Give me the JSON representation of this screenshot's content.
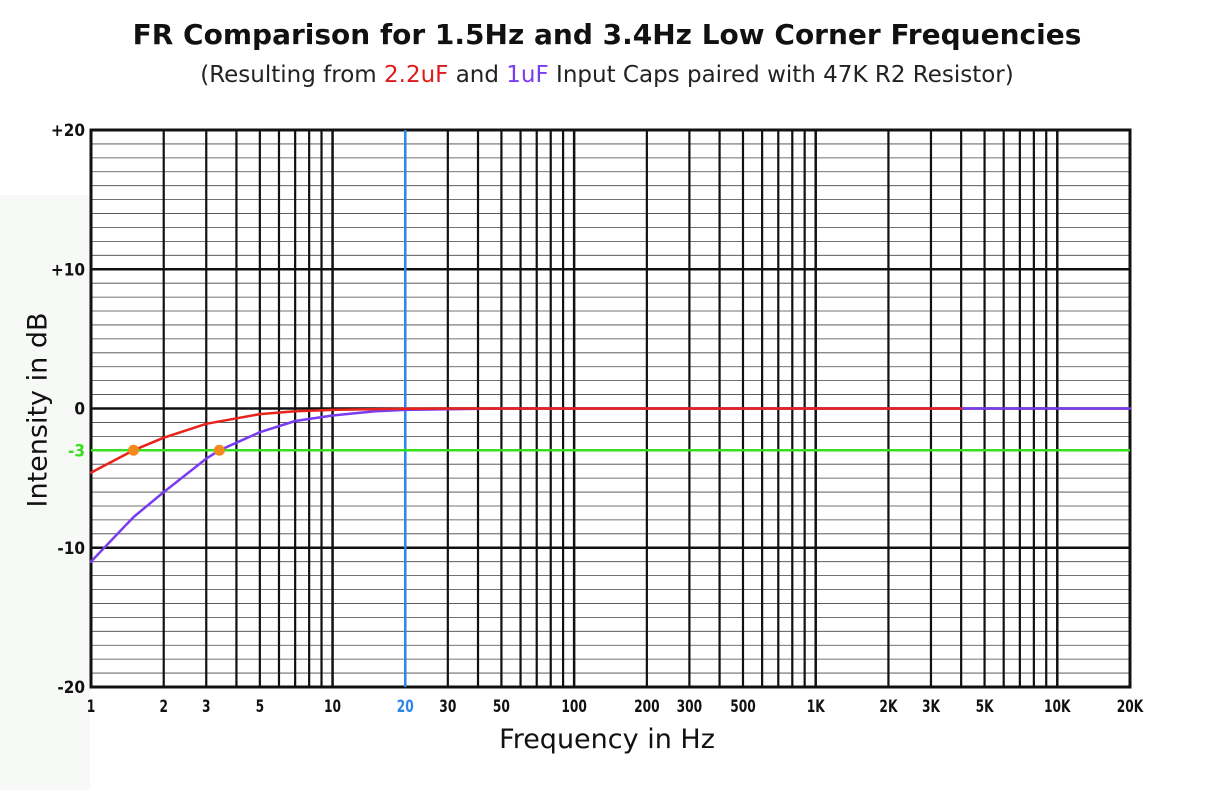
{
  "title": "FR Comparison for 1.5Hz and 3.4Hz Low Corner Frequencies",
  "subtitle": {
    "prefix": "(Resulting from ",
    "red_part": "2.2uF",
    "middle": " and ",
    "purple_part": "1uF",
    "suffix": " Input Caps paired with 47K R2 Resistor)"
  },
  "colors": {
    "red_series": "#e8231a",
    "purple_series": "#7a3cf0",
    "minus3_line": "#33e01a",
    "twenty_hz_line": "#2a86e8",
    "marker": "#f28a1c",
    "grid": "#111111"
  },
  "chart_data": {
    "type": "line",
    "title": "FR Comparison for 1.5Hz and 3.4Hz Low Corner Frequencies",
    "xlabel": "Frequency in Hz",
    "ylabel": "Intensity in dB",
    "xscale": "log",
    "xlim": [
      1,
      20000
    ],
    "ylim": [
      -20,
      20
    ],
    "x_ticks": [
      {
        "value": 1,
        "label": "1"
      },
      {
        "value": 2,
        "label": "2"
      },
      {
        "value": 3,
        "label": "3"
      },
      {
        "value": 5,
        "label": "5"
      },
      {
        "value": 10,
        "label": "10"
      },
      {
        "value": 20,
        "label": "20",
        "highlight": true
      },
      {
        "value": 30,
        "label": "30"
      },
      {
        "value": 50,
        "label": "50"
      },
      {
        "value": 100,
        "label": "100"
      },
      {
        "value": 200,
        "label": "200"
      },
      {
        "value": 300,
        "label": "300"
      },
      {
        "value": 500,
        "label": "500"
      },
      {
        "value": 1000,
        "label": "1K"
      },
      {
        "value": 2000,
        "label": "2K"
      },
      {
        "value": 3000,
        "label": "3K"
      },
      {
        "value": 5000,
        "label": "5K"
      },
      {
        "value": 10000,
        "label": "10K"
      },
      {
        "value": 20000,
        "label": "20K"
      }
    ],
    "y_ticks": [
      {
        "value": 20,
        "label": "+20"
      },
      {
        "value": 10,
        "label": "+10"
      },
      {
        "value": 0,
        "label": "0"
      },
      {
        "value": -3,
        "label": "-3",
        "highlight": true
      },
      {
        "value": -10,
        "label": "-10"
      },
      {
        "value": -20,
        "label": "-20"
      }
    ],
    "reference_lines": {
      "x": 20,
      "y": -3
    },
    "grid": true,
    "series": [
      {
        "name": "2.2uF",
        "color": "#e8231a",
        "x": [
          1,
          1.5,
          2,
          3,
          5,
          7,
          10,
          15,
          20,
          30,
          50,
          100,
          1000,
          4000
        ],
        "y": [
          -4.6,
          -3.0,
          -2.1,
          -1.1,
          -0.4,
          -0.2,
          -0.1,
          -0.04,
          -0.02,
          0,
          0,
          0,
          0,
          0
        ]
      },
      {
        "name": "1uF",
        "color": "#7a3cf0",
        "x": [
          1,
          1.5,
          2,
          3,
          3.4,
          5,
          7,
          10,
          15,
          20,
          30,
          50,
          100,
          1000,
          10000,
          20000
        ],
        "y": [
          -11.0,
          -7.8,
          -6.0,
          -3.6,
          -3.0,
          -1.7,
          -0.9,
          -0.5,
          -0.2,
          -0.1,
          -0.05,
          0,
          0,
          0,
          0,
          0
        ]
      }
    ],
    "markers": [
      {
        "x": 1.5,
        "y": -3
      },
      {
        "x": 3.4,
        "y": -3
      }
    ]
  }
}
